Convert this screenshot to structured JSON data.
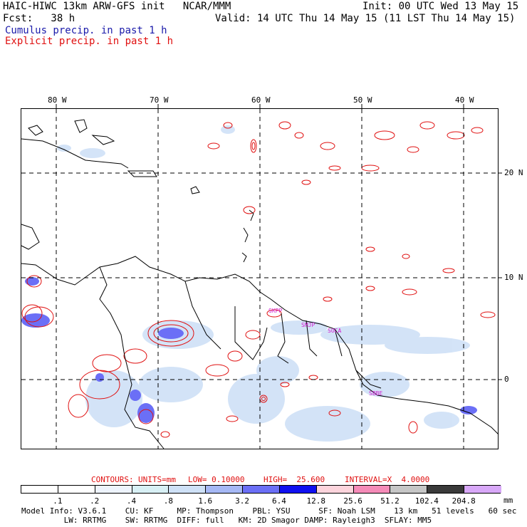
{
  "header": {
    "title_left": "HAIC-HIWC 13km ARW-GFS init   NCAR/MMM",
    "fcst": "Fcst:   38 h",
    "init": "Init: 00 UTC Wed 13 May 15",
    "valid": "Valid: 14 UTC Thu 14 May 15 (11 LST Thu 14 May 15)",
    "cumulus": "Cumulus precip. in past 1 h",
    "explicit": "Explicit precip. in past 1 h"
  },
  "colors": {
    "cumulus_text": "#1a1aaa",
    "explicit_text": "#e01010",
    "explicit_contour": "#e01010",
    "city_label": "#d020d0"
  },
  "map": {
    "lon_labels": [
      "80 W",
      "70 W",
      "60 W",
      "50 W",
      "40 W"
    ],
    "lat_labels": [
      "20 N",
      "10 N",
      "0"
    ],
    "city_labels": [
      "SKPP",
      "SMJP",
      "SOCA",
      "SBBE"
    ]
  },
  "contours_line": {
    "label": "CONTOURS:",
    "units": "UNITS=mm",
    "low": "LOW= 0.10000",
    "high": "HIGH=  25.600",
    "interval": "INTERVAL=X  4.0000"
  },
  "colorbar": {
    "unit": "mm",
    "levels": [
      ".1",
      ".2",
      ".4",
      ".8",
      "1.6",
      "3.2",
      "6.4",
      "12.8",
      "25.6",
      "51.2",
      "102.4",
      "204.8"
    ],
    "colors": [
      "#ffffff",
      "#ffffff",
      "#eef4fd",
      "#d8f0f5",
      "#cfe1f7",
      "#a6b8f5",
      "#6b6ff6",
      "#1010f0",
      "#fcd4dc",
      "#f58bb8",
      "#c6c6c6",
      "#3a3a3a",
      "#d8a8f8"
    ]
  },
  "footer": {
    "line1": "Model Info: V3.6.1    CU: KF     MP: Thompson    PBL: YSU      SF: Noah LSM    13 km   51 levels   60 sec",
    "line2": "         LW: RRTMG    SW: RRTMG  DIFF: full   KM: 2D Smagor DAMP: Rayleigh3  SFLAY: MM5"
  }
}
